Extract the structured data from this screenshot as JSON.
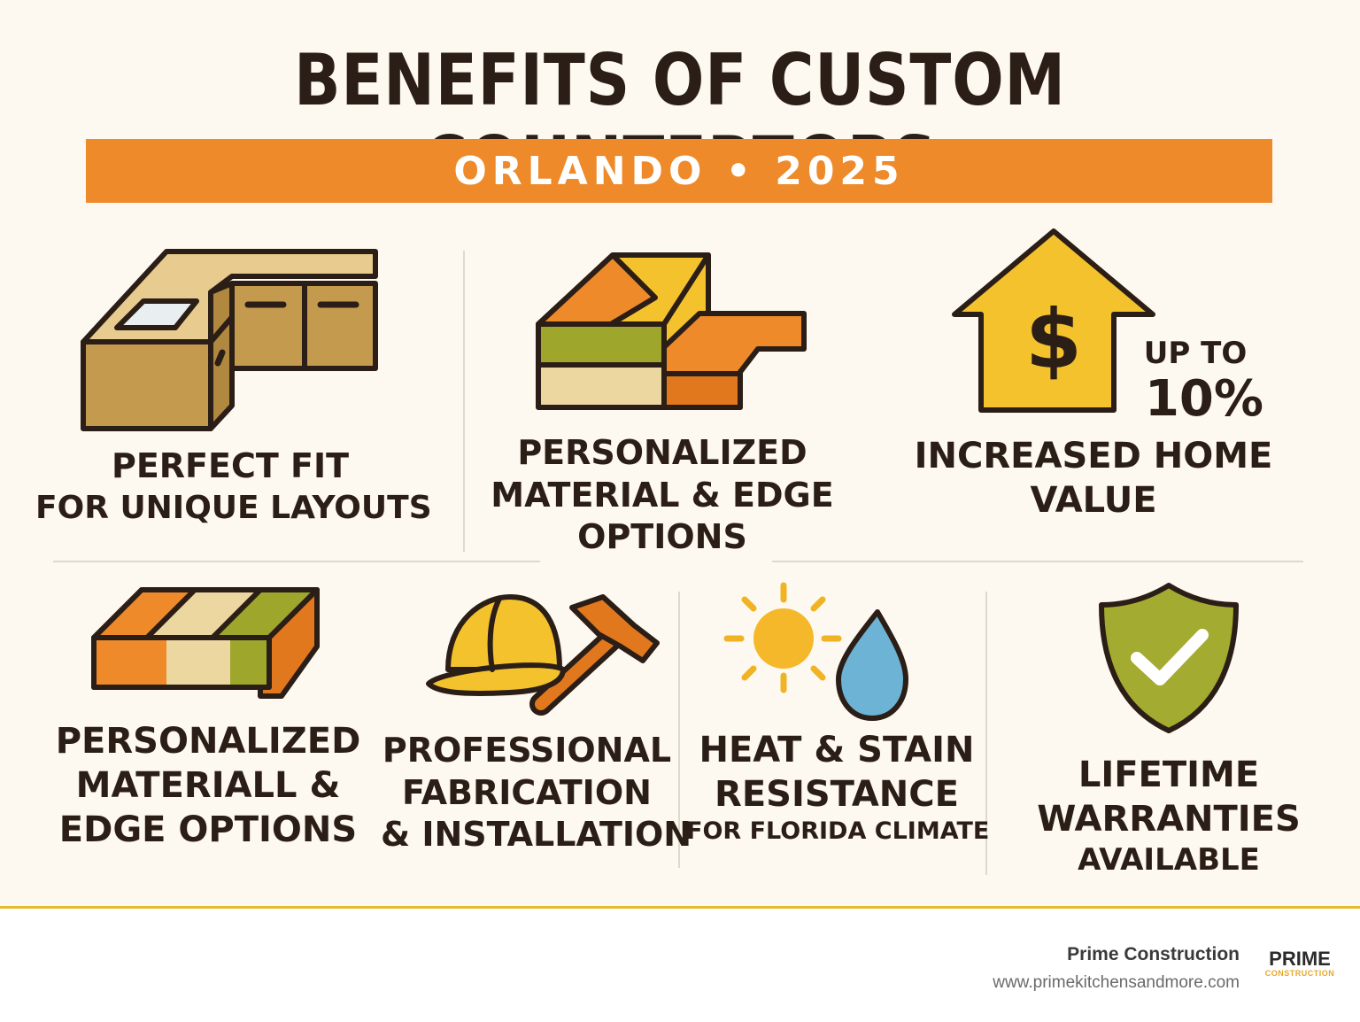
{
  "title": "BENEFITS OF CUSTOM COUNTERTOPS",
  "banner": "ORLANDO • 2025",
  "benefits_top": [
    {
      "lines": [
        "PERFECT FIT",
        "FOR UNIQUE LAYOUTS"
      ],
      "icon": "kitchen-cabinet-icon"
    },
    {
      "lines": [
        "PERSONALIZED",
        "MATERIAL & EDGE",
        "OPTIONS"
      ],
      "icon": "stone-slab-icon"
    },
    {
      "lines": [
        "INCREASED HOME",
        "VALUE"
      ],
      "icon": "house-dollar-icon",
      "stat_prefix": "UP TO",
      "stat_value": "10%"
    }
  ],
  "benefits_bottom": [
    {
      "lines": [
        "PERSONALIZED",
        "MATERIALL &",
        "EDGE OPTIONS"
      ],
      "icon": "countertop-edge-icon"
    },
    {
      "lines": [
        "PROFESSIONAL",
        "FABRICATION",
        "& INSTALLATION"
      ],
      "icon": "hardhat-hammer-icon"
    },
    {
      "lines": [
        "HEAT & STAIN",
        "RESISTANCE",
        "FOR FLORIDA CLIMATE"
      ],
      "icon": "sun-water-drop-icon"
    },
    {
      "lines": [
        "LIFETIME",
        "WARRANTIES",
        "AVAILABLE"
      ],
      "icon": "shield-check-icon"
    }
  ],
  "footer": {
    "company": "Prime Construction",
    "website": "www.primekitchensandmore.com",
    "logo_word": "PRIME",
    "logo_sub": "CONSTRUCTION"
  },
  "colors": {
    "background": "#fdf8f0",
    "banner": "#ee8a2a",
    "accent_yellow": "#f5c531",
    "accent_green": "#a3ab30",
    "text_dark": "#2b1e16"
  }
}
